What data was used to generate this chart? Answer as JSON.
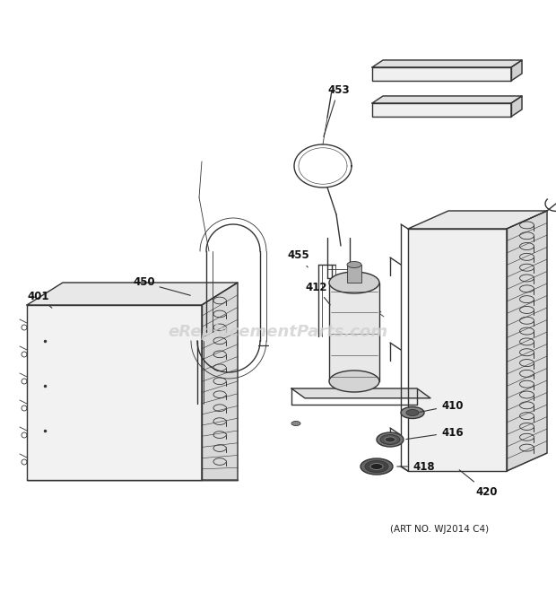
{
  "bg_color": "#ffffff",
  "line_color": "#333333",
  "watermark_text": "eReplacementParts.com",
  "watermark_color": "#d0d0d0",
  "art_no_text": "(ART NO. WJ2014 C4)",
  "fig_width": 6.2,
  "fig_height": 6.61,
  "dpi": 100
}
